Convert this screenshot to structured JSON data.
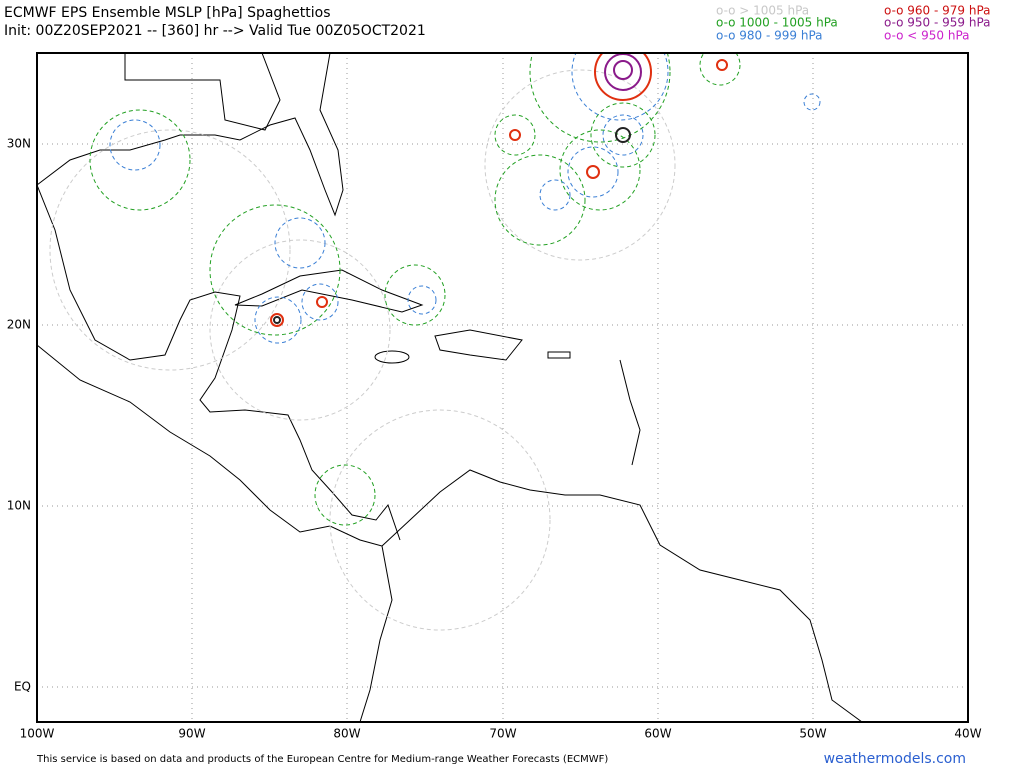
{
  "header": {
    "title": "ECMWF EPS Ensemble MSLP [hPa] Spaghettios",
    "subtitle": "Init: 00Z20SEP2021 -- [360] hr --> Valid Tue 00Z05OCT2021"
  },
  "legend": [
    "o-o > 1005 hPa",
    "o-o 1000 - 1005 hPa",
    "o-o 980 - 999 hPa",
    "o-o 960 - 979 hPa",
    "o-o 950 - 959 hPa",
    "o-o < 950 hPa"
  ],
  "map": {
    "lon_labels": [
      "100W",
      "90W",
      "80W",
      "70W",
      "60W",
      "50W",
      "40W"
    ],
    "lat_labels": [
      "30N",
      "20N",
      "10N",
      "EQ"
    ]
  },
  "footer": {
    "disclaimer": "This service is based on data and products of the European Centre for Medium-range Weather Forecasts (ECMWF)",
    "site": "weathermodels.com"
  }
}
